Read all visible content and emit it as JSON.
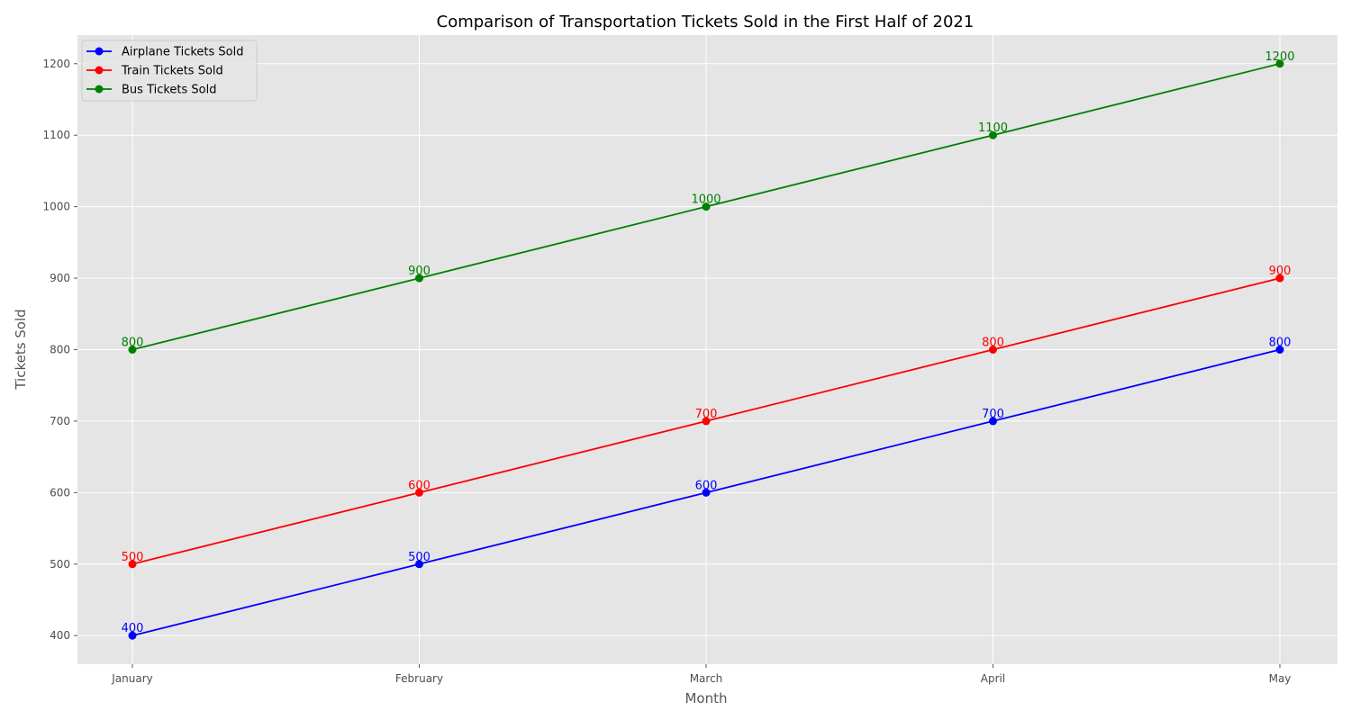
{
  "chart_data": {
    "type": "line",
    "title": "Comparison of Transportation Tickets Sold in the First Half of 2021",
    "xlabel": "Month",
    "ylabel": "Tickets Sold",
    "categories": [
      "January",
      "February",
      "March",
      "April",
      "May"
    ],
    "ylim": [
      360,
      1240
    ],
    "yticks": [
      400,
      500,
      600,
      700,
      800,
      900,
      1000,
      1100,
      1200
    ],
    "grid": true,
    "legend_position": "top-left",
    "series": [
      {
        "name": "Airplane Tickets Sold",
        "color": "#0000ff",
        "values": [
          400,
          500,
          600,
          700,
          800
        ]
      },
      {
        "name": "Train Tickets Sold",
        "color": "#ff0000",
        "values": [
          500,
          600,
          700,
          800,
          900
        ]
      },
      {
        "name": "Bus Tickets Sold",
        "color": "#008000",
        "values": [
          800,
          900,
          1000,
          1100,
          1200
        ]
      }
    ],
    "colors": {
      "plot_background": "#e5e5e5",
      "grid": "#ffffff"
    }
  }
}
